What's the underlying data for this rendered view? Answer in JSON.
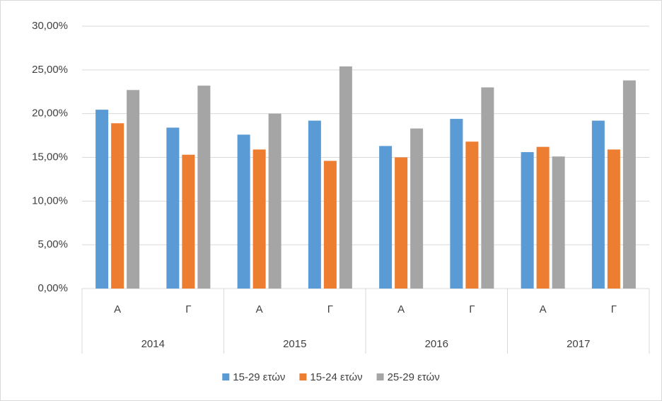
{
  "chart_data": {
    "type": "bar",
    "categories": [
      "Α",
      "Γ",
      "Α",
      "Γ",
      "Α",
      "Γ",
      "Α",
      "Γ"
    ],
    "groups": [
      "2014",
      "2015",
      "2016",
      "2017"
    ],
    "series": [
      {
        "name": "15-29 ετών",
        "color": "#5b9bd5",
        "values": [
          20.45,
          18.4,
          17.6,
          19.2,
          16.3,
          19.4,
          15.6,
          19.2
        ]
      },
      {
        "name": "15-24 ετών",
        "color": "#ed7d31",
        "values": [
          18.9,
          15.3,
          15.9,
          14.6,
          15.0,
          16.8,
          16.2,
          15.9
        ]
      },
      {
        "name": "25-29 ετών",
        "color": "#a5a5a5",
        "values": [
          22.7,
          23.2,
          20.0,
          25.4,
          18.3,
          23.0,
          15.1,
          23.8
        ]
      }
    ],
    "ylim": [
      0,
      30
    ],
    "yticks": [
      {
        "value": 0,
        "label": "0,00%"
      },
      {
        "value": 5,
        "label": "5,00%"
      },
      {
        "value": 10,
        "label": "10,00%"
      },
      {
        "value": 15,
        "label": "15,00%"
      },
      {
        "value": 20,
        "label": "20,00%"
      },
      {
        "value": 25,
        "label": "25,00%"
      },
      {
        "value": 30,
        "label": "30,00%"
      }
    ],
    "grid": true,
    "legend": "bottom"
  }
}
